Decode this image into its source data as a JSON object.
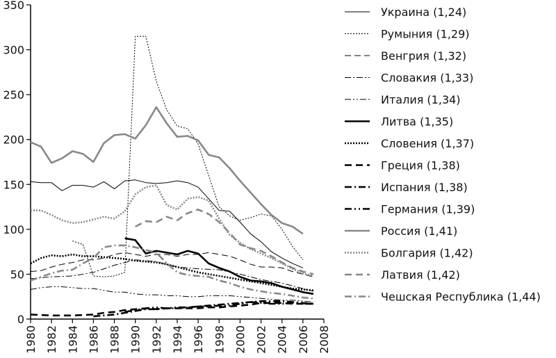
{
  "chart_data": {
    "type": "line",
    "title": "",
    "xlabel": "",
    "ylabel": "",
    "xlim": [
      1980,
      2008
    ],
    "ylim": [
      0,
      350
    ],
    "x_ticks": [
      "1980",
      "1982",
      "1984",
      "1986",
      "1988",
      "1990",
      "1992",
      "1994",
      "1996",
      "1998",
      "2000",
      "2002",
      "2004",
      "2006",
      "2008"
    ],
    "y_ticks": [
      "0",
      "50",
      "100",
      "150",
      "200",
      "250",
      "300",
      "350"
    ],
    "grid": false,
    "legend_position": "right",
    "series": [
      {
        "name": "Украина (1,24)",
        "color": "#000000",
        "width": 1,
        "dash": "",
        "x": [
          1980,
          1981,
          1982,
          1983,
          1984,
          1985,
          1986,
          1987,
          1988,
          1989,
          1990,
          1991,
          1992,
          1993,
          1994,
          1995,
          1996,
          1997,
          1998,
          1999,
          2000,
          2001,
          2002,
          2003,
          2004,
          2005,
          2006
        ],
        "y": [
          153,
          152,
          152,
          143,
          149,
          149,
          147,
          153,
          145,
          154,
          155,
          152,
          151,
          152,
          154,
          152,
          147,
          134,
          121,
          120,
          108,
          95,
          86,
          75,
          68,
          62,
          57
        ]
      },
      {
        "name": "Румыния (1,29)",
        "color": "#000000",
        "width": 1,
        "dash": "2,2",
        "x": [
          1984,
          1985,
          1986,
          1987,
          1988,
          1989,
          1990,
          1991,
          1992,
          1993,
          1994,
          1995,
          1996,
          1997,
          1998,
          1999,
          2000,
          2001,
          2002,
          2003,
          2004,
          2005,
          2006
        ],
        "y": [
          87,
          83,
          48,
          47,
          48,
          52,
          315,
          315,
          265,
          233,
          215,
          212,
          195,
          160,
          125,
          115,
          110,
          113,
          117,
          115,
          100,
          81,
          66
        ]
      },
      {
        "name": "Венгрия (1,32)",
        "color": "#000000",
        "width": 1,
        "dash": "9,5",
        "x": [
          1980,
          1981,
          1982,
          1983,
          1984,
          1985,
          1986,
          1987,
          1988,
          1989,
          1990,
          1991,
          1992,
          1993,
          1994,
          1995,
          1996,
          1997,
          1998,
          1999,
          2000,
          2001,
          2002,
          2003,
          2004,
          2005,
          2006,
          2007
        ],
        "y": [
          53,
          54,
          58,
          61,
          63,
          66,
          66,
          68,
          72,
          74,
          72,
          70,
          72,
          72,
          70,
          72,
          72,
          74,
          72,
          70,
          66,
          61,
          58,
          58,
          57,
          53,
          50,
          47
        ]
      },
      {
        "name": "Словакия (1,33)",
        "color": "#000000",
        "width": 1,
        "dash": "9,3,2,3",
        "x": [
          1980,
          1982,
          1984,
          1986,
          1988,
          1990,
          1992,
          1994,
          1996,
          1998,
          2000,
          2002,
          2004,
          2006,
          2007
        ],
        "y": [
          45,
          47,
          48,
          52,
          60,
          66,
          64,
          58,
          56,
          55,
          50,
          44,
          40,
          34,
          31
        ]
      },
      {
        "name": "Италия (1,34)",
        "color": "#000000",
        "width": 1,
        "dash": "9,3,2,3,2,3",
        "x": [
          1980,
          1981,
          1982,
          1983,
          1984,
          1985,
          1986,
          1987,
          1988,
          1989,
          1990,
          1991,
          1992,
          1993,
          1994,
          1995,
          1996,
          1997,
          1998,
          1999,
          2000,
          2001,
          2002,
          2003,
          2004,
          2005,
          2006,
          2007
        ],
        "y": [
          33,
          35,
          36,
          36,
          35,
          34,
          34,
          32,
          30,
          30,
          28,
          27,
          27,
          26,
          26,
          25,
          25,
          26,
          26,
          26,
          25,
          24,
          23,
          22,
          21,
          21,
          20,
          19
        ]
      },
      {
        "name": "Литва (1,35)",
        "color": "#000000",
        "width": 2.6,
        "dash": "",
        "x": [
          1989,
          1990,
          1991,
          1992,
          1993,
          1994,
          1995,
          1996,
          1997,
          1998,
          1999,
          2000,
          2001,
          2002,
          2003,
          2004,
          2005,
          2006,
          2007
        ],
        "y": [
          90,
          88,
          73,
          76,
          74,
          72,
          76,
          73,
          62,
          57,
          53,
          47,
          43,
          42,
          40,
          36,
          33,
          30,
          28
        ]
      },
      {
        "name": "Словения (1,37)",
        "color": "#000000",
        "width": 2.6,
        "dash": "2,2",
        "x": [
          1980,
          1981,
          1982,
          1983,
          1984,
          1985,
          1986,
          1987,
          1988,
          1989,
          1990,
          1991,
          1992,
          1993,
          1994,
          1995,
          1996,
          1997,
          1998,
          1999,
          2000,
          2001,
          2002,
          2003,
          2004,
          2005,
          2006,
          2007
        ],
        "y": [
          62,
          68,
          71,
          70,
          72,
          70,
          70,
          69,
          68,
          67,
          65,
          64,
          63,
          61,
          58,
          55,
          52,
          50,
          48,
          46,
          44,
          42,
          40,
          38,
          36,
          34,
          33,
          32
        ]
      },
      {
        "name": "Греция (1,38)",
        "color": "#000000",
        "width": 2.6,
        "dash": "10,6",
        "x": [
          1980,
          1982,
          1984,
          1986,
          1987,
          1988,
          1989,
          1990,
          1991,
          1992,
          1993,
          1994,
          1995,
          1996,
          1997,
          1998,
          1999,
          2000,
          2001,
          2002,
          2003,
          2004,
          2005,
          2006,
          2007
        ],
        "y": [
          5,
          4,
          4,
          5,
          7,
          8,
          10,
          11,
          12,
          11,
          12,
          12,
          12,
          12,
          13,
          13,
          14,
          15,
          16,
          18,
          18,
          18,
          17,
          17,
          17
        ]
      },
      {
        "name": "Испания (1,38)",
        "color": "#000000",
        "width": 2.6,
        "dash": "10,4,2,4",
        "x": [
          1986,
          1987,
          1988,
          1989,
          1990,
          1991,
          1992,
          1993,
          1994,
          1995,
          1996,
          1997,
          1998,
          1999,
          2000,
          2001,
          2002,
          2003,
          2004,
          2005,
          2006,
          2007
        ],
        "y": [
          3,
          4,
          5,
          7,
          9,
          11,
          11,
          12,
          12,
          13,
          14,
          15,
          16,
          17,
          18,
          19,
          20,
          20,
          20,
          19,
          18,
          17
        ]
      },
      {
        "name": "Германия (1,39)",
        "color": "#000000",
        "width": 2.6,
        "dash": "10,4,2,4,2,4",
        "x": [
          1989,
          1990,
          1991,
          1992,
          1993,
          1994,
          1995,
          1996,
          1997,
          1998,
          1999,
          2000,
          2001,
          2002,
          2003,
          2004,
          2005,
          2006,
          2007
        ],
        "y": [
          8,
          10,
          12,
          13,
          12,
          13,
          13,
          14,
          14,
          15,
          15,
          17,
          19,
          18,
          17,
          17,
          18,
          17,
          17
        ]
      },
      {
        "name": "Россия (1,41)",
        "color": "#888888",
        "width": 2.6,
        "dash": "",
        "x": [
          1980,
          1981,
          1982,
          1983,
          1984,
          1985,
          1986,
          1987,
          1988,
          1989,
          1990,
          1991,
          1992,
          1993,
          1994,
          1995,
          1996,
          1997,
          1998,
          1999,
          2000,
          2001,
          2002,
          2003,
          2004,
          2005,
          2006
        ],
        "y": [
          197,
          192,
          174,
          179,
          187,
          184,
          175,
          196,
          205,
          206,
          201,
          216,
          236,
          218,
          203,
          204,
          199,
          183,
          180,
          168,
          154,
          141,
          128,
          116,
          107,
          103,
          95
        ]
      },
      {
        "name": "Болгария (1,42)",
        "color": "#888888",
        "width": 2.6,
        "dash": "2,2",
        "x": [
          1980,
          1981,
          1982,
          1983,
          1984,
          1985,
          1986,
          1987,
          1988,
          1989,
          1990,
          1991,
          1992,
          1993,
          1994,
          1995,
          1996,
          1997,
          1998,
          1999,
          2000,
          2001,
          2002,
          2003,
          2004,
          2005,
          2006,
          2007
        ],
        "y": [
          121,
          121,
          116,
          110,
          107,
          108,
          111,
          114,
          112,
          120,
          139,
          147,
          149,
          127,
          122,
          134,
          136,
          132,
          112,
          94,
          85,
          78,
          73,
          68,
          62,
          56,
          51,
          48
        ]
      },
      {
        "name": "Латвия (1,42)",
        "color": "#888888",
        "width": 2.6,
        "dash": "10,6",
        "x": [
          1990,
          1991,
          1992,
          1993,
          1994,
          1995,
          1996,
          1997,
          1998,
          1999,
          2000,
          2001,
          2002,
          2003,
          2004,
          2005,
          2006,
          2007
        ],
        "y": [
          103,
          109,
          108,
          114,
          110,
          118,
          122,
          117,
          108,
          96,
          83,
          79,
          76,
          70,
          63,
          57,
          53,
          50
        ]
      },
      {
        "name": "Чешская Республика (1,44)",
        "color": "#888888",
        "width": 2.6,
        "dash": "10,4,2,4",
        "x": [
          1980,
          1981,
          1982,
          1983,
          1984,
          1985,
          1986,
          1987,
          1988,
          1989,
          1990,
          1991,
          1992,
          1993,
          1994,
          1995,
          1996,
          1997,
          1998,
          1999,
          2000,
          2001,
          2002,
          2003,
          2004,
          2005,
          2006,
          2007
        ],
        "y": [
          43,
          47,
          51,
          54,
          55,
          62,
          68,
          80,
          82,
          82,
          80,
          77,
          74,
          62,
          52,
          49,
          48,
          47,
          43,
          40,
          36,
          33,
          31,
          29,
          28,
          26,
          24,
          23
        ]
      }
    ]
  }
}
